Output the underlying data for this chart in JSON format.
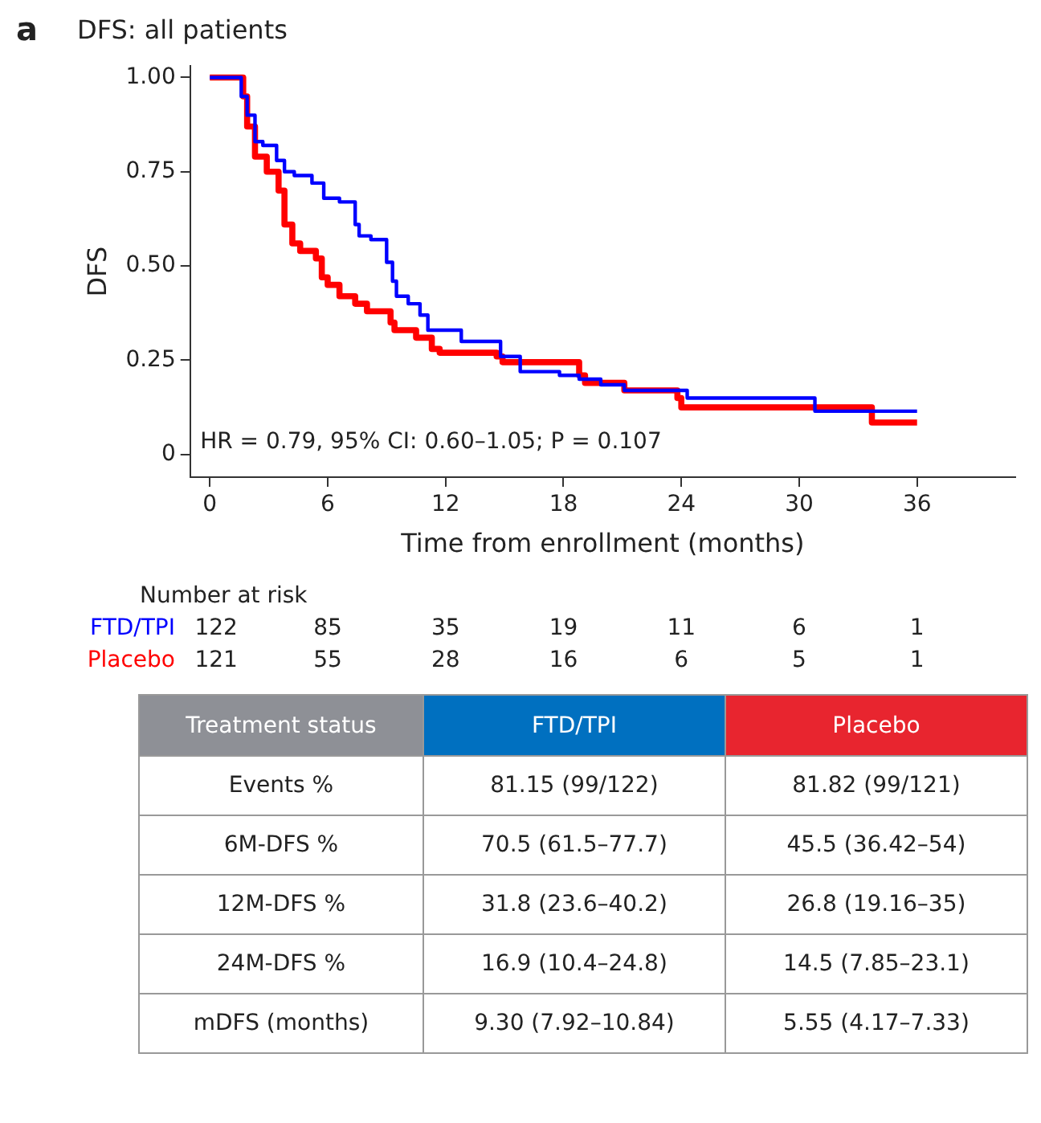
{
  "chart_data": {
    "type": "step",
    "title": "DFS: all patients",
    "xlabel": "Time from enrollment (months)",
    "ylabel": "DFS",
    "xlim": [
      -1,
      41
    ],
    "xticks": [
      0,
      6,
      12,
      18,
      24,
      30,
      36
    ],
    "ylim": [
      -0.06,
      1.03
    ],
    "yticks": [
      {
        "value": 0,
        "label": "0"
      },
      {
        "value": 0.25,
        "label": "0.25"
      },
      {
        "value": 0.5,
        "label": "0.50"
      },
      {
        "value": 0.75,
        "label": "0.75"
      },
      {
        "value": 1,
        "label": "1.00"
      }
    ],
    "grid": false,
    "legend": false,
    "marker": "none",
    "line_style": "solid",
    "series": [
      {
        "name": "FTD/TPI",
        "color": "#0000ff",
        "x": [
          0,
          1.6,
          1.9,
          2.3,
          2.7,
          3.4,
          3.8,
          4.3,
          5.2,
          5.8,
          6.6,
          7.4,
          7.6,
          8.2,
          9.0,
          9.3,
          9.5,
          10.1,
          10.7,
          11.1,
          11.3,
          12.8,
          14.8,
          15.8,
          17.8,
          18.8,
          19.9,
          21.1,
          24.3,
          30.8,
          36
        ],
        "values": [
          1.0,
          0.95,
          0.9,
          0.83,
          0.82,
          0.78,
          0.75,
          0.74,
          0.72,
          0.68,
          0.67,
          0.61,
          0.58,
          0.57,
          0.51,
          0.46,
          0.42,
          0.4,
          0.37,
          0.33,
          0.33,
          0.3,
          0.26,
          0.22,
          0.21,
          0.2,
          0.185,
          0.17,
          0.15,
          0.115,
          0.115
        ]
      },
      {
        "name": "Placebo",
        "color": "#ff0000",
        "x": [
          0,
          1.7,
          1.9,
          2.3,
          2.9,
          3.5,
          3.8,
          4.2,
          4.6,
          5.4,
          5.7,
          6.0,
          6.6,
          7.4,
          8.0,
          9.2,
          9.4,
          10.5,
          11.3,
          11.7,
          14.6,
          14.9,
          18.8,
          19.1,
          21.1,
          23.8,
          24.0,
          33.7,
          36
        ],
        "values": [
          1.0,
          0.95,
          0.87,
          0.79,
          0.75,
          0.7,
          0.61,
          0.56,
          0.54,
          0.52,
          0.47,
          0.45,
          0.42,
          0.4,
          0.38,
          0.35,
          0.33,
          0.31,
          0.28,
          0.27,
          0.26,
          0.245,
          0.21,
          0.19,
          0.17,
          0.15,
          0.125,
          0.085,
          0.085
        ]
      }
    ],
    "annotations": [
      "a",
      "HR = 0.79, 95% CI: 0.60–1.05; P = 0.107",
      "Number at risk",
      "122",
      "85",
      "35",
      "19",
      "11",
      "6",
      "1",
      "121",
      "55",
      "28",
      "16",
      "6",
      "5",
      "1",
      "Treatment status",
      "FTD/TPI",
      "Placebo",
      "Events %",
      "81.15 (99/122)",
      "81.82 (99/121)",
      "6M-DFS %",
      "70.5 (61.5–77.7)",
      "45.5 (36.42–54)",
      "12M-DFS %",
      "31.8 (23.6–40.2)",
      "26.8 (19.16–35)",
      "24M-DFS %",
      "16.9 (10.4–24.8)",
      "14.5 (7.85–23.1)",
      "mDFS (months)",
      "9.30 (7.92–10.84)",
      "5.55 (4.17–7.33)"
    ]
  }
}
